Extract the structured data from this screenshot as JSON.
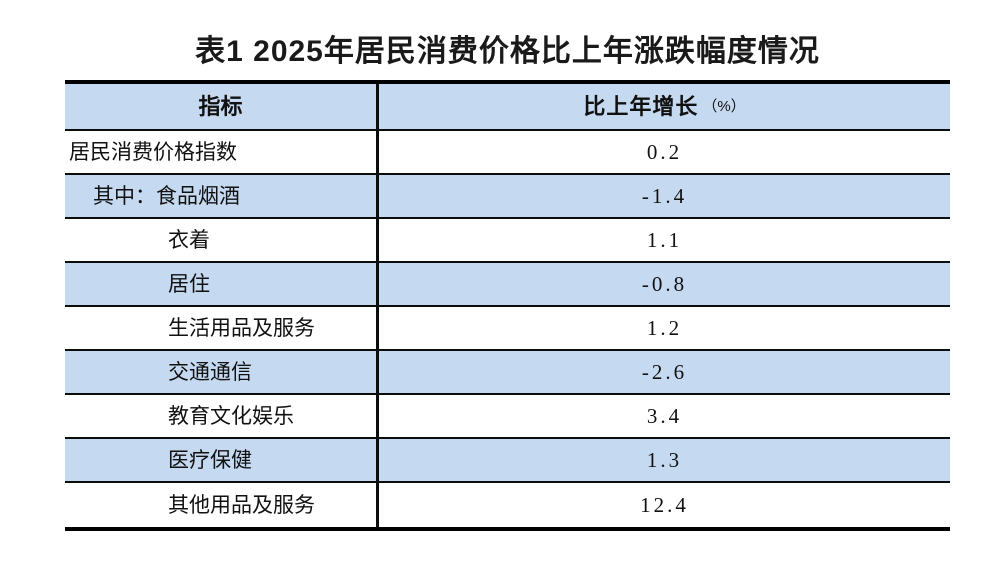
{
  "page": {
    "title": "表1 2025年居民消费价格比上年涨跌幅度情况"
  },
  "table": {
    "header": {
      "indicator": "指标",
      "growth": "比上年增长",
      "growth_unit": "（%）"
    },
    "rows": [
      {
        "label": "居民消费价格指数",
        "value": "0.2"
      },
      {
        "label": "其中：食品烟酒",
        "value": "-1.4"
      },
      {
        "label": "衣着",
        "value": "1.1"
      },
      {
        "label": "居住",
        "value": "-0.8"
      },
      {
        "label": "生活用品及服务",
        "value": "1.2"
      },
      {
        "label": "交通通信",
        "value": "-2.6"
      },
      {
        "label": "教育文化娱乐",
        "value": "3.4"
      },
      {
        "label": "医疗保健",
        "value": "1.3"
      },
      {
        "label": "其他用品及服务",
        "value": "12.4"
      }
    ]
  },
  "colors": {
    "stripe_blue": "#c5d9f1",
    "row_white": "#ffffff",
    "border_black": "#000000",
    "text": "#111111"
  },
  "chart_data": {
    "type": "table",
    "title": "表1 2025年居民消费价格比上年涨跌幅度情况",
    "columns": [
      "指标",
      "比上年增长（%）"
    ],
    "rows": [
      [
        "居民消费价格指数",
        0.2
      ],
      [
        "其中：食品烟酒",
        -1.4
      ],
      [
        "衣着",
        1.1
      ],
      [
        "居住",
        -0.8
      ],
      [
        "生活用品及服务",
        1.2
      ],
      [
        "交通通信",
        -2.6
      ],
      [
        "教育文化娱乐",
        3.4
      ],
      [
        "医疗保健",
        1.3
      ],
      [
        "其他用品及服务",
        12.4
      ]
    ],
    "notes": "Striped rows: header and alternating data rows filled #c5d9f1; thick black top/bottom borders; single vertical divider between columns; no outer left/right borders."
  }
}
